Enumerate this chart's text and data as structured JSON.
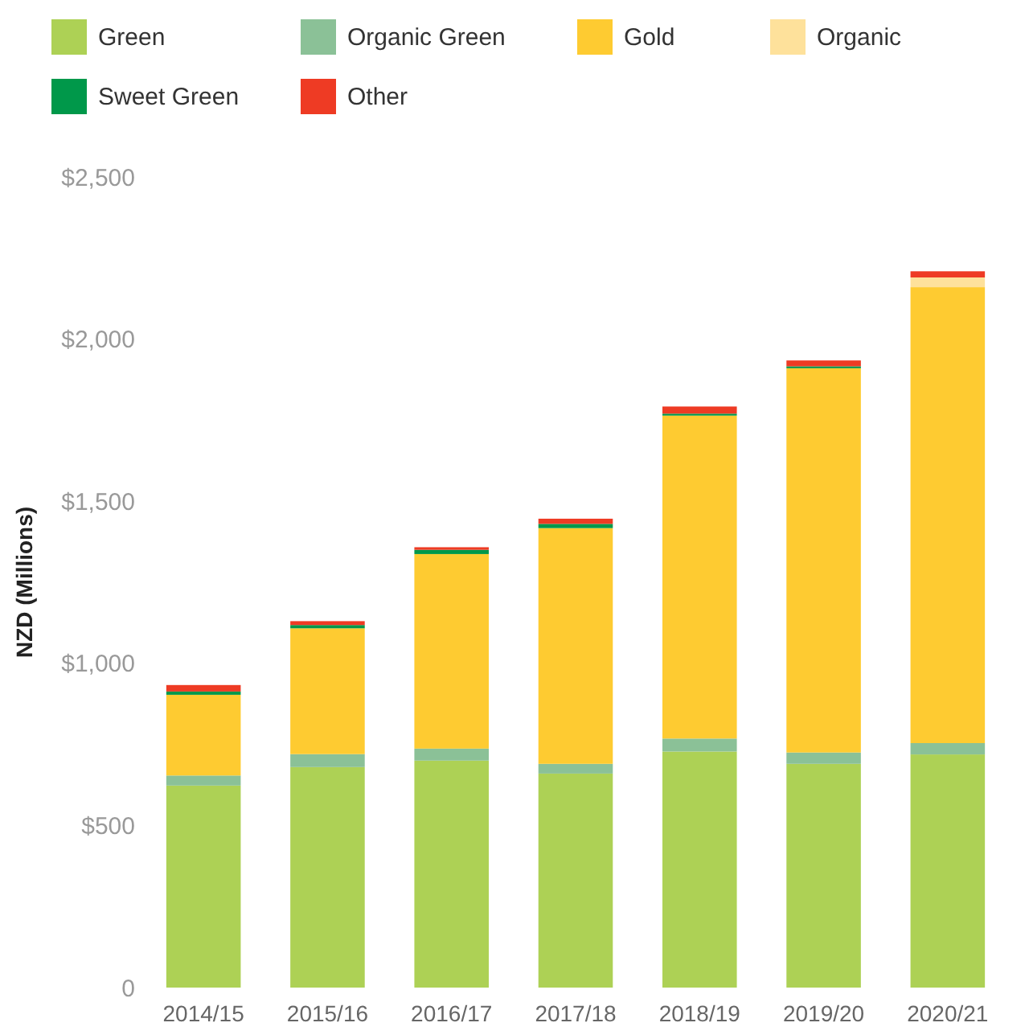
{
  "chart_data": {
    "type": "bar",
    "stacked": true,
    "ylabel": "NZD (Millions)",
    "categories": [
      "2014/15",
      "2015/16",
      "2016/17",
      "2017/18",
      "2018/19",
      "2019/20",
      "2020/21"
    ],
    "series": [
      {
        "name": "Green",
        "color": "#add155",
        "values": [
          623,
          680,
          700,
          660,
          728,
          690,
          719
        ]
      },
      {
        "name": "Organic Green",
        "color": "#8bc197",
        "values": [
          31,
          40,
          37,
          30,
          40,
          35,
          35
        ]
      },
      {
        "name": "Gold",
        "color": "#fecb31",
        "values": [
          249,
          388,
          600,
          727,
          996,
          1185,
          1406
        ]
      },
      {
        "name": "Organic",
        "color": "#fee19b",
        "values": [
          0,
          0,
          0,
          0,
          0,
          0,
          30
        ]
      },
      {
        "name": "Sweet Green",
        "color": "#00984a",
        "values": [
          10,
          10,
          13,
          13,
          6,
          6,
          0
        ]
      },
      {
        "name": "Other",
        "color": "#ee3b24",
        "values": [
          20,
          12,
          8,
          16,
          22,
          18,
          19
        ]
      }
    ],
    "ylim": [
      0,
      2500
    ],
    "yticks": [
      {
        "value": 0,
        "label": "0"
      },
      {
        "value": 500,
        "label": "$500"
      },
      {
        "value": 1000,
        "label": "$1,000"
      },
      {
        "value": 1500,
        "label": "$1,500"
      },
      {
        "value": 2000,
        "label": "$2,000"
      },
      {
        "value": 2500,
        "label": "$2,500"
      }
    ],
    "legend": "top left"
  }
}
